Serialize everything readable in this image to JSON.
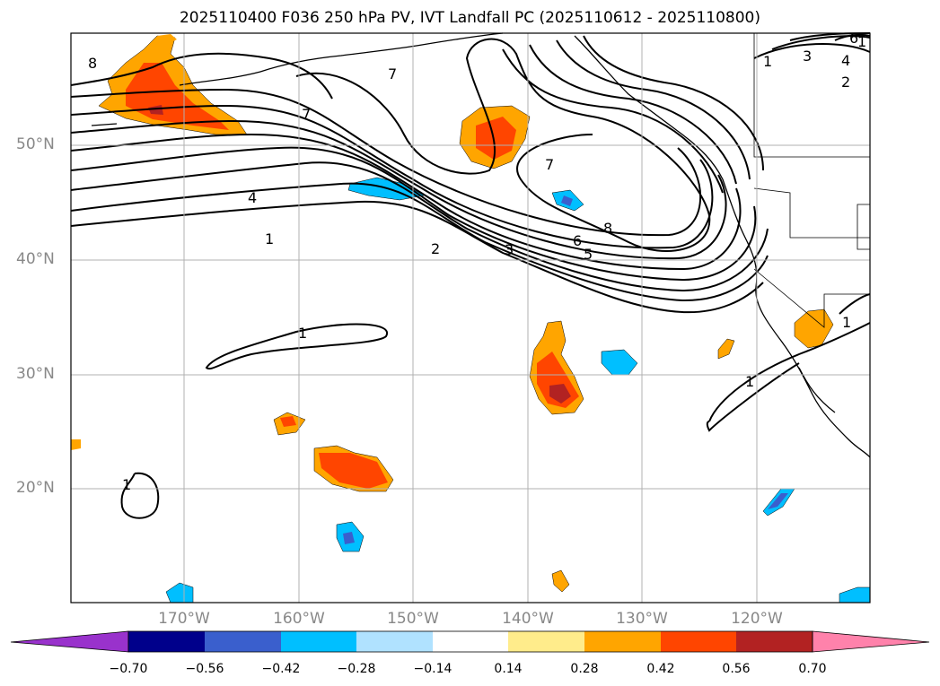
{
  "title": "2025110400 F036 250 hPa PV, IVT Landfall PC (2025110612 - 2025110800)",
  "map": {
    "lat_labels": [
      "50°N",
      "40°N",
      "30°N",
      "20°N"
    ],
    "lon_labels": [
      "170°W",
      "160°W",
      "150°W",
      "140°W",
      "130°W",
      "120°W"
    ],
    "contour_labels": [
      "8",
      "7",
      "7",
      "4",
      "1",
      "1",
      "1",
      "2",
      "3",
      "7",
      "6",
      "5",
      "8",
      "1",
      "2",
      "3",
      "4",
      "6",
      "1",
      "1",
      "1"
    ]
  },
  "colorbar": {
    "ticks": [
      "−0.70",
      "−0.56",
      "−0.42",
      "−0.28",
      "−0.14",
      "0.14",
      "0.28",
      "0.42",
      "0.56",
      "0.70"
    ],
    "colors": [
      "#9932cc",
      "#00008b",
      "#3a5fcd",
      "#00bfff",
      "#b0e2ff",
      "#ffffff",
      "#ffec8b",
      "#ffa500",
      "#ff4500",
      "#b22222",
      "#ff82ab",
      "#ff82ab"
    ]
  }
}
